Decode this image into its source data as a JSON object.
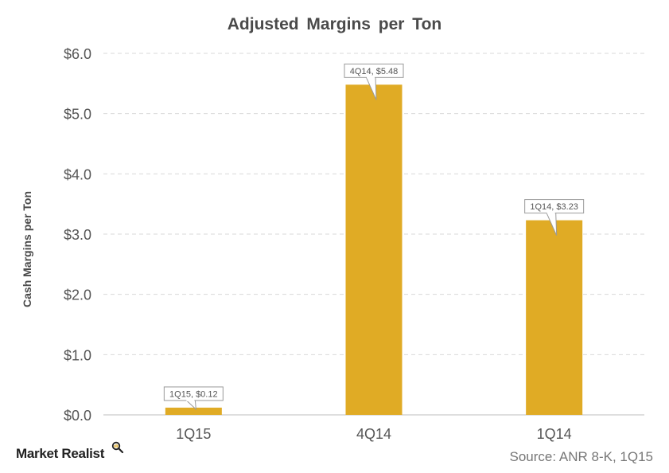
{
  "chart_data": {
    "type": "bar",
    "title": "Adjusted Margins per Ton",
    "ylabel": "Cash Margins per Ton",
    "xlabel": "",
    "categories": [
      "1Q15",
      "4Q14",
      "1Q14"
    ],
    "values": [
      0.12,
      5.48,
      3.23
    ],
    "data_labels": [
      "1Q15, $0.12",
      "4Q14, $5.48",
      "1Q14, $3.23"
    ],
    "ylim": [
      0,
      6
    ],
    "yticks": [
      0,
      1,
      2,
      3,
      4,
      5,
      6
    ],
    "ytick_labels": [
      "$0.0",
      "$1.0",
      "$2.0",
      "$3.0",
      "$4.0",
      "$5.0",
      "$6.0"
    ],
    "grid": true,
    "legend": "none",
    "bar_color": "#e0ab25"
  },
  "branding": {
    "logo_text": "Market Realist",
    "logo_icon": "magnifier-icon"
  },
  "source": "Source: ANR 8-K, 1Q15"
}
